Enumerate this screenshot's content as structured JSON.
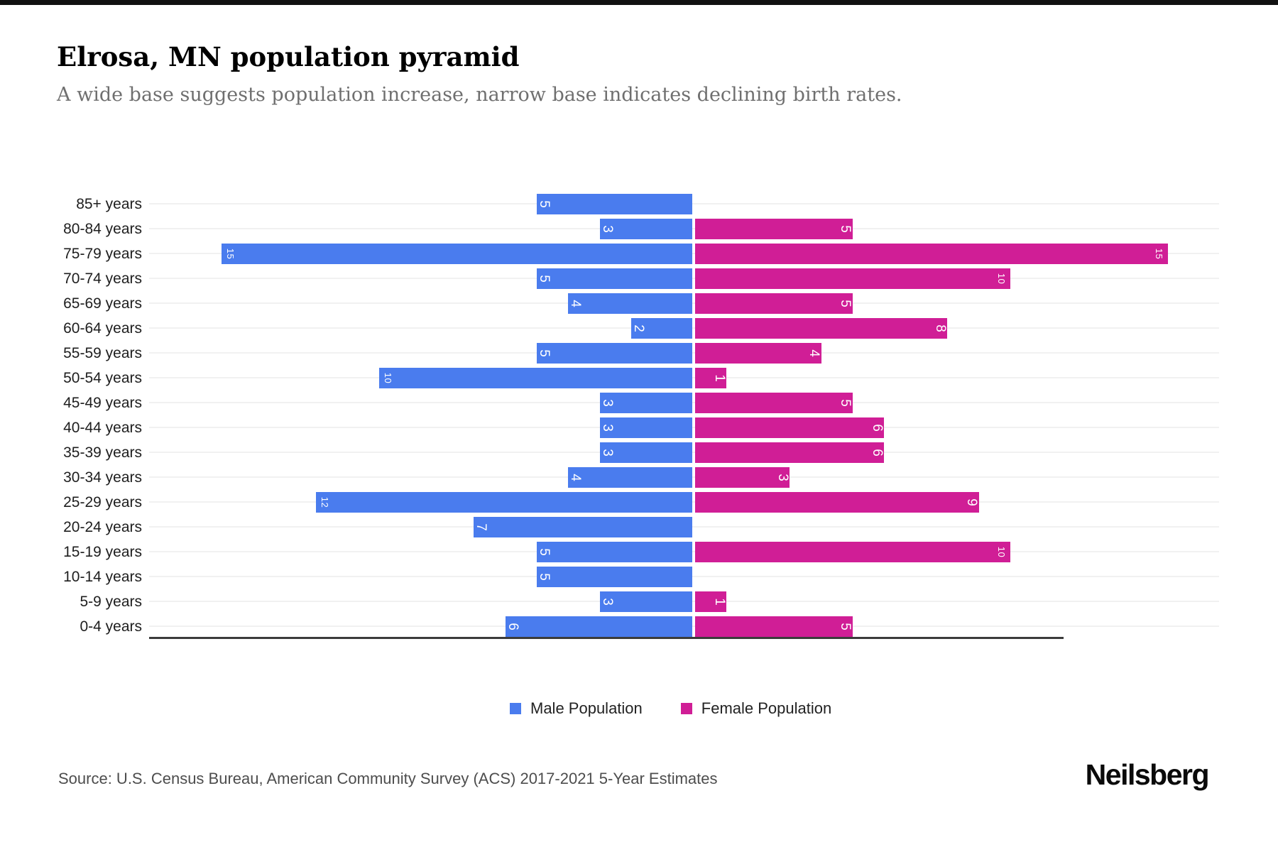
{
  "title": "Elrosa, MN population pyramid",
  "subtitle": "A wide base suggests population increase, narrow base indicates declining birth rates.",
  "chart_data": {
    "type": "bar",
    "variant": "population-pyramid",
    "categories": [
      "85+ years",
      "80-84 years",
      "75-79 years",
      "70-74 years",
      "65-69 years",
      "60-64 years",
      "55-59 years",
      "50-54 years",
      "45-49 years",
      "40-44 years",
      "35-39 years",
      "30-34 years",
      "25-29 years",
      "20-24 years",
      "15-19 years",
      "10-14 years",
      "5-9 years",
      "0-4 years"
    ],
    "series": [
      {
        "name": "Male Population",
        "side": "left",
        "color": "#4a7cee",
        "values": [
          5,
          3,
          15,
          5,
          4,
          2,
          5,
          10,
          3,
          3,
          3,
          4,
          12,
          7,
          5,
          5,
          3,
          6
        ]
      },
      {
        "name": "Female Population",
        "side": "right",
        "color": "#d01e96",
        "values": [
          0,
          5,
          15,
          10,
          5,
          8,
          4,
          1,
          5,
          6,
          6,
          3,
          9,
          0,
          10,
          0,
          1,
          5
        ]
      }
    ],
    "value_labels": "inside-outer-end, rotated 90deg, white",
    "grid": true,
    "legend_position": "bottom",
    "xlim": [
      -17,
      17
    ]
  },
  "legend": {
    "male_label": "Male Population",
    "female_label": "Female Population"
  },
  "colors": {
    "male": "#4a7cee",
    "female": "#d01e96",
    "gridline": "#f1f1f1",
    "axis_line": "#3b3b3b"
  },
  "source": "Source: U.S. Census Bureau, American Community Survey (ACS) 2017-2021 5-Year Estimates",
  "branding": "Neilsberg"
}
